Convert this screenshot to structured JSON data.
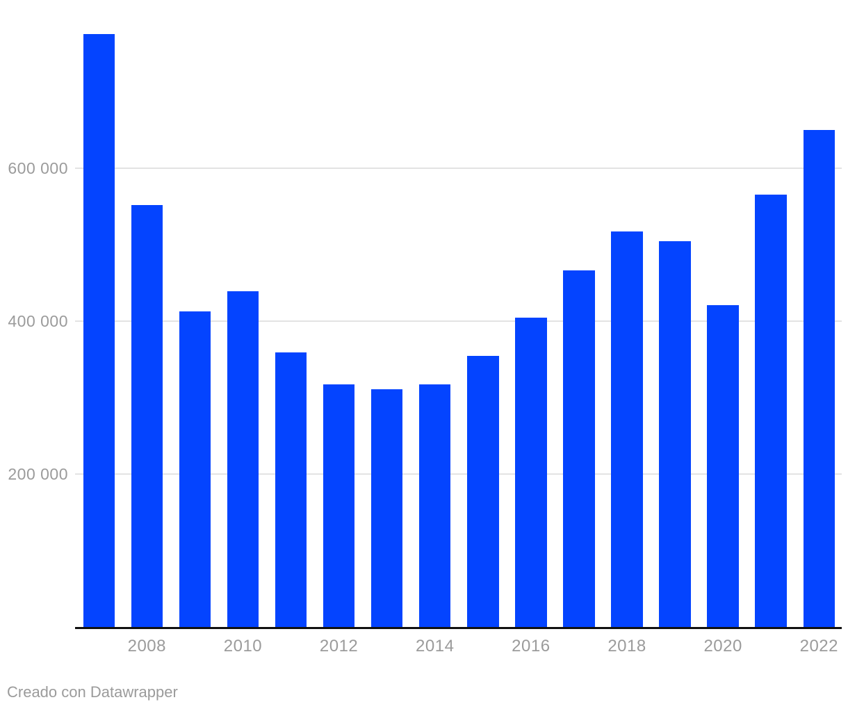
{
  "footer": {
    "attribution": "Creado con Datawrapper"
  },
  "colors": {
    "bar": "#0444ff",
    "gridline": "#e3e3e3",
    "axis": "#111111",
    "tick_label": "#9b9b9b",
    "background": "#ffffff"
  },
  "chart_data": {
    "type": "bar",
    "title": "",
    "xlabel": "",
    "ylabel": "",
    "categories": [
      "2007",
      "2008",
      "2009",
      "2010",
      "2011",
      "2012",
      "2013",
      "2014",
      "2015",
      "2016",
      "2017",
      "2018",
      "2019",
      "2020",
      "2021",
      "2022"
    ],
    "values": [
      776000,
      552000,
      413000,
      439000,
      359000,
      318000,
      311000,
      318000,
      355000,
      405000,
      467000,
      518000,
      505000,
      421000,
      566000,
      650000
    ],
    "ylim": [
      0,
      800000
    ],
    "y_ticks": [
      {
        "value": 200000,
        "label": "200 000"
      },
      {
        "value": 400000,
        "label": "400 000"
      },
      {
        "value": 600000,
        "label": "600 000"
      }
    ],
    "x_tick_labels": [
      "2008",
      "2010",
      "2012",
      "2014",
      "2016",
      "2018",
      "2020",
      "2022"
    ],
    "grid": "horizontal-only",
    "legend": "none"
  }
}
